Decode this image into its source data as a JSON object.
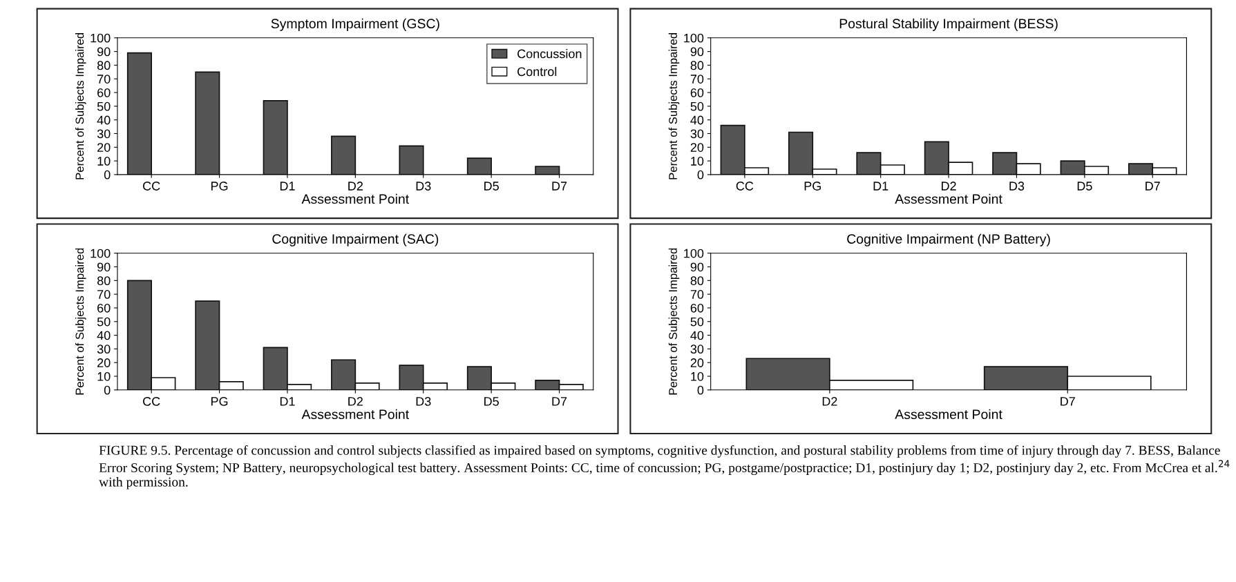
{
  "chart_data": [
    {
      "type": "bar",
      "title": "Symptom Impairment (GSC)",
      "xlabel": "Assessment Point",
      "ylabel": "Percent of Subjects Impaired",
      "categories": [
        "CC",
        "PG",
        "D1",
        "D2",
        "D3",
        "D5",
        "D7"
      ],
      "series": [
        {
          "name": "Concussion",
          "color": "#555555",
          "values": [
            89,
            75,
            54,
            28,
            21,
            12,
            6
          ]
        },
        {
          "name": "Control",
          "color": "#ffffff",
          "values": [
            null,
            null,
            null,
            null,
            null,
            null,
            null
          ]
        }
      ],
      "ylim": [
        0,
        100
      ],
      "yticks": [
        0,
        10,
        20,
        30,
        40,
        50,
        60,
        70,
        80,
        90,
        100
      ],
      "legend": "top right"
    },
    {
      "type": "bar",
      "title": "Postural Stability Impairment (BESS)",
      "xlabel": "Assessment Point",
      "ylabel": "Percent of Subjects Impaired",
      "categories": [
        "CC",
        "PG",
        "D1",
        "D2",
        "D3",
        "D5",
        "D7"
      ],
      "series": [
        {
          "color": "#555555",
          "values": [
            36,
            31,
            16,
            24,
            16,
            10,
            8
          ]
        },
        {
          "color": "#ffffff",
          "values": [
            5,
            4,
            7,
            9,
            8,
            6,
            5
          ]
        }
      ],
      "ylim": [
        0,
        100
      ],
      "yticks": [
        0,
        10,
        20,
        30,
        40,
        50,
        60,
        70,
        80,
        90,
        100
      ]
    },
    {
      "type": "bar",
      "title": "Cognitive Impairment (SAC)",
      "xlabel": "Assessment Point",
      "ylabel": "Percent of Subjects Impaired",
      "categories": [
        "CC",
        "PG",
        "D1",
        "D2",
        "D3",
        "D5",
        "D7"
      ],
      "series": [
        {
          "color": "#555555",
          "values": [
            80,
            65,
            31,
            22,
            18,
            17,
            7
          ]
        },
        {
          "color": "#ffffff",
          "values": [
            9,
            6,
            4,
            5,
            5,
            5,
            4
          ]
        }
      ],
      "ylim": [
        0,
        100
      ],
      "yticks": [
        0,
        10,
        20,
        30,
        40,
        50,
        60,
        70,
        80,
        90,
        100
      ]
    },
    {
      "type": "bar",
      "title": "Cognitive Impairment (NP Battery)",
      "xlabel": "Assessment Point",
      "ylabel": "Percent of Subjects Impaired",
      "categories": [
        "D2",
        "D7"
      ],
      "series": [
        {
          "color": "#555555",
          "values": [
            23,
            17
          ]
        },
        {
          "color": "#ffffff",
          "values": [
            7,
            10
          ]
        }
      ],
      "ylim": [
        0,
        100
      ],
      "yticks": [
        0,
        10,
        20,
        30,
        40,
        50,
        60,
        70,
        80,
        90,
        100
      ],
      "annotations": [
        "FIGURE 9.5. Percentage of concussion and control subjects classified as impaired based on symptoms, cognitive dysfunction, and postural stability problems from time of injury through day 7. BESS, Balance Error Scoring System; NP Battery, neuropsychological test battery. Assessment Points: CC, time of concussion; PG, postgame/postpractice; D1, postinjury day 1; D2, postinjury day 2, etc. From McCrea et al.$^{24}$ with permission."
      ]
    }
  ]
}
